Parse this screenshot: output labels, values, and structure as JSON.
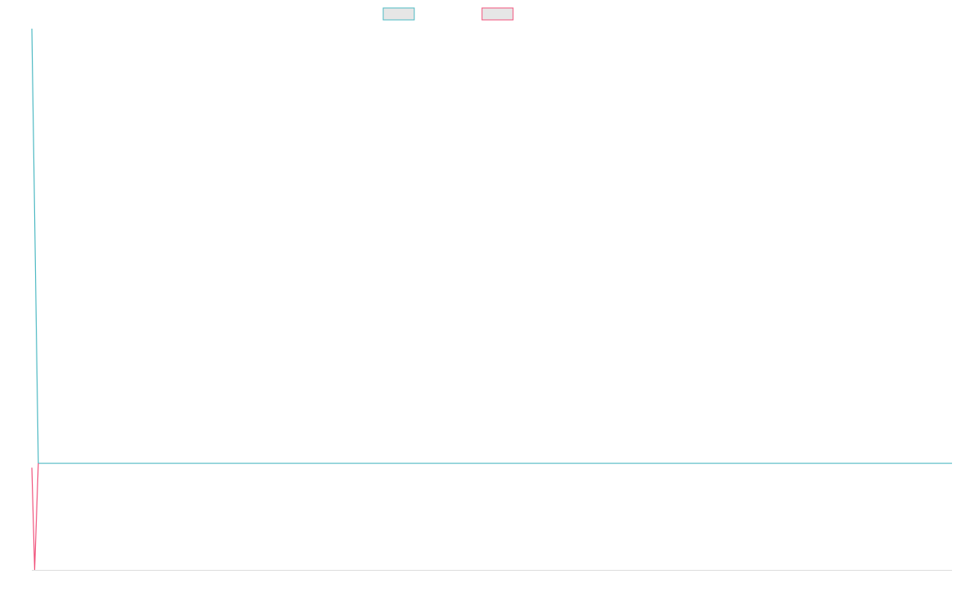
{
  "chart_data": {
    "type": "line",
    "title": "",
    "xlabel": "",
    "ylabel": "",
    "grid": false,
    "legend": {
      "position": "top-center",
      "box_fill": "#e6e6e6"
    },
    "x_range": [
      0,
      100
    ],
    "y_range": [
      0,
      100
    ],
    "x_axis_color": "#dddddd",
    "series": [
      {
        "color": "#4bb8c2",
        "points": [
          [
            0,
            100
          ],
          [
            0.7,
            19.7
          ],
          [
            100,
            19.7
          ]
        ]
      },
      {
        "color": "#f0507a",
        "points": [
          [
            0,
            18.9
          ],
          [
            0.3,
            0
          ],
          [
            0.7,
            19.7
          ]
        ]
      }
    ]
  }
}
